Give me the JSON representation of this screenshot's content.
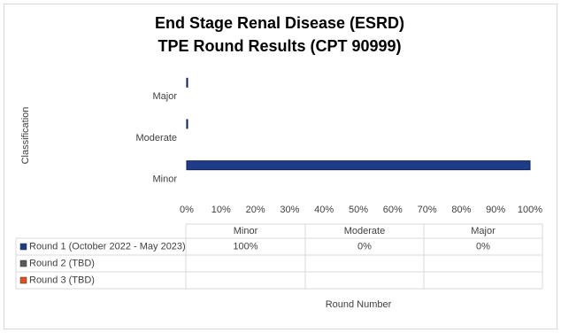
{
  "chart_data": {
    "type": "bar",
    "orientation": "horizontal",
    "title": [
      "End Stage Renal Disease (ESRD)",
      "TPE Round Results (CPT 90999)"
    ],
    "categories": [
      "Minor",
      "Moderate",
      "Major"
    ],
    "series": [
      {
        "name": "Round 1 (October 2022 - May 2023)",
        "color": "#1f3c88",
        "values": [
          100,
          0,
          0
        ],
        "value_labels": [
          "100%",
          "0%",
          "0%"
        ]
      },
      {
        "name": "Round 2 (TBD)",
        "color": "#595959",
        "values": [
          null,
          null,
          null
        ]
      },
      {
        "name": "Round 3 (TBD)",
        "color": "#e0501e",
        "values": [
          null,
          null,
          null
        ]
      }
    ],
    "xlim": [
      0,
      100
    ],
    "xticks": [
      {
        "value": 0,
        "label": "0%"
      },
      {
        "value": 10,
        "label": "10%"
      },
      {
        "value": 20,
        "label": "20%"
      },
      {
        "value": 30,
        "label": "30%"
      },
      {
        "value": 40,
        "label": "40%"
      },
      {
        "value": 50,
        "label": "50%"
      },
      {
        "value": 60,
        "label": "60%"
      },
      {
        "value": 70,
        "label": "70%"
      },
      {
        "value": 80,
        "label": "80%"
      },
      {
        "value": 90,
        "label": "90%"
      },
      {
        "value": 100,
        "label": "100%"
      }
    ],
    "y_label": "Classification",
    "x_label": "Round Number"
  }
}
